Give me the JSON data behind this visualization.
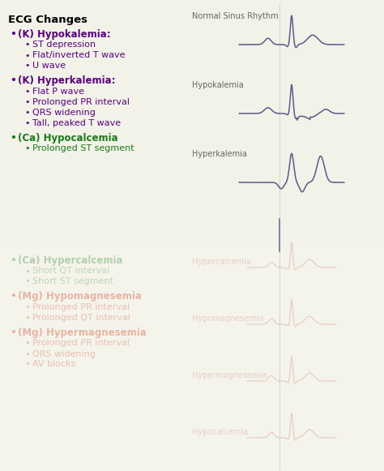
{
  "title": "ECG Changes",
  "background_color": "#f2f2e8",
  "title_color": "#000000",
  "title_fontsize": 9.5,
  "sections": [
    {
      "bullet_color": "#5a0080",
      "bullet_text": "(K) Hypokalemia:",
      "sub_items": [
        "ST depression",
        "Flat/inverted T wave",
        "U wave"
      ],
      "sub_color": "#5a0080"
    },
    {
      "bullet_color": "#5a0080",
      "bullet_text": "(K) Hyperkalemia:",
      "sub_items": [
        "Flat P wave",
        "Prolonged PR interval",
        "QRS widening",
        "Tall, peaked T wave"
      ],
      "sub_color": "#5a0080"
    },
    {
      "bullet_color": "#1a7a1a",
      "bullet_text": "(Ca) Hypocalcemia",
      "sub_items": [
        "Prolonged ST segment"
      ],
      "sub_color": "#1a7a1a"
    }
  ],
  "blurred_sections": [
    {
      "bullet_color": "#1a7a1a",
      "bullet_text": "(Ca) Hypercalcemia",
      "sub_items": [
        "Short QT interval",
        "Short ST segment"
      ],
      "sub_color": "#1a7a1a"
    },
    {
      "bullet_color": "#cc2200",
      "bullet_text": "(Mg) Hypomagnesemia",
      "sub_items": [
        "Prolonged PR interval",
        "Prolonged QT interval"
      ],
      "sub_color": "#cc2200"
    },
    {
      "bullet_color": "#cc2200",
      "bullet_text": "(Mg) Hypermagnesemia",
      "sub_items": [
        "Prolonged PR interval",
        "QRS widening",
        "AV blocks"
      ],
      "sub_color": "#cc2200"
    }
  ],
  "ecg_color": "#5a5a8a",
  "ecg_label_color": "#666666",
  "ecg_labels": [
    "Normal Sinus Rhythm",
    "Hypokalemia",
    "Hyperkalemia"
  ],
  "blurred_ecg_labels": [
    "Hypercalcemia",
    "Hypomagnesemia",
    "Hypermagnesemia",
    "Hypocalcemia"
  ],
  "blurred_ecg_color": "#cc6666",
  "figsize": [
    4.74,
    5.81
  ],
  "dpi": 100
}
